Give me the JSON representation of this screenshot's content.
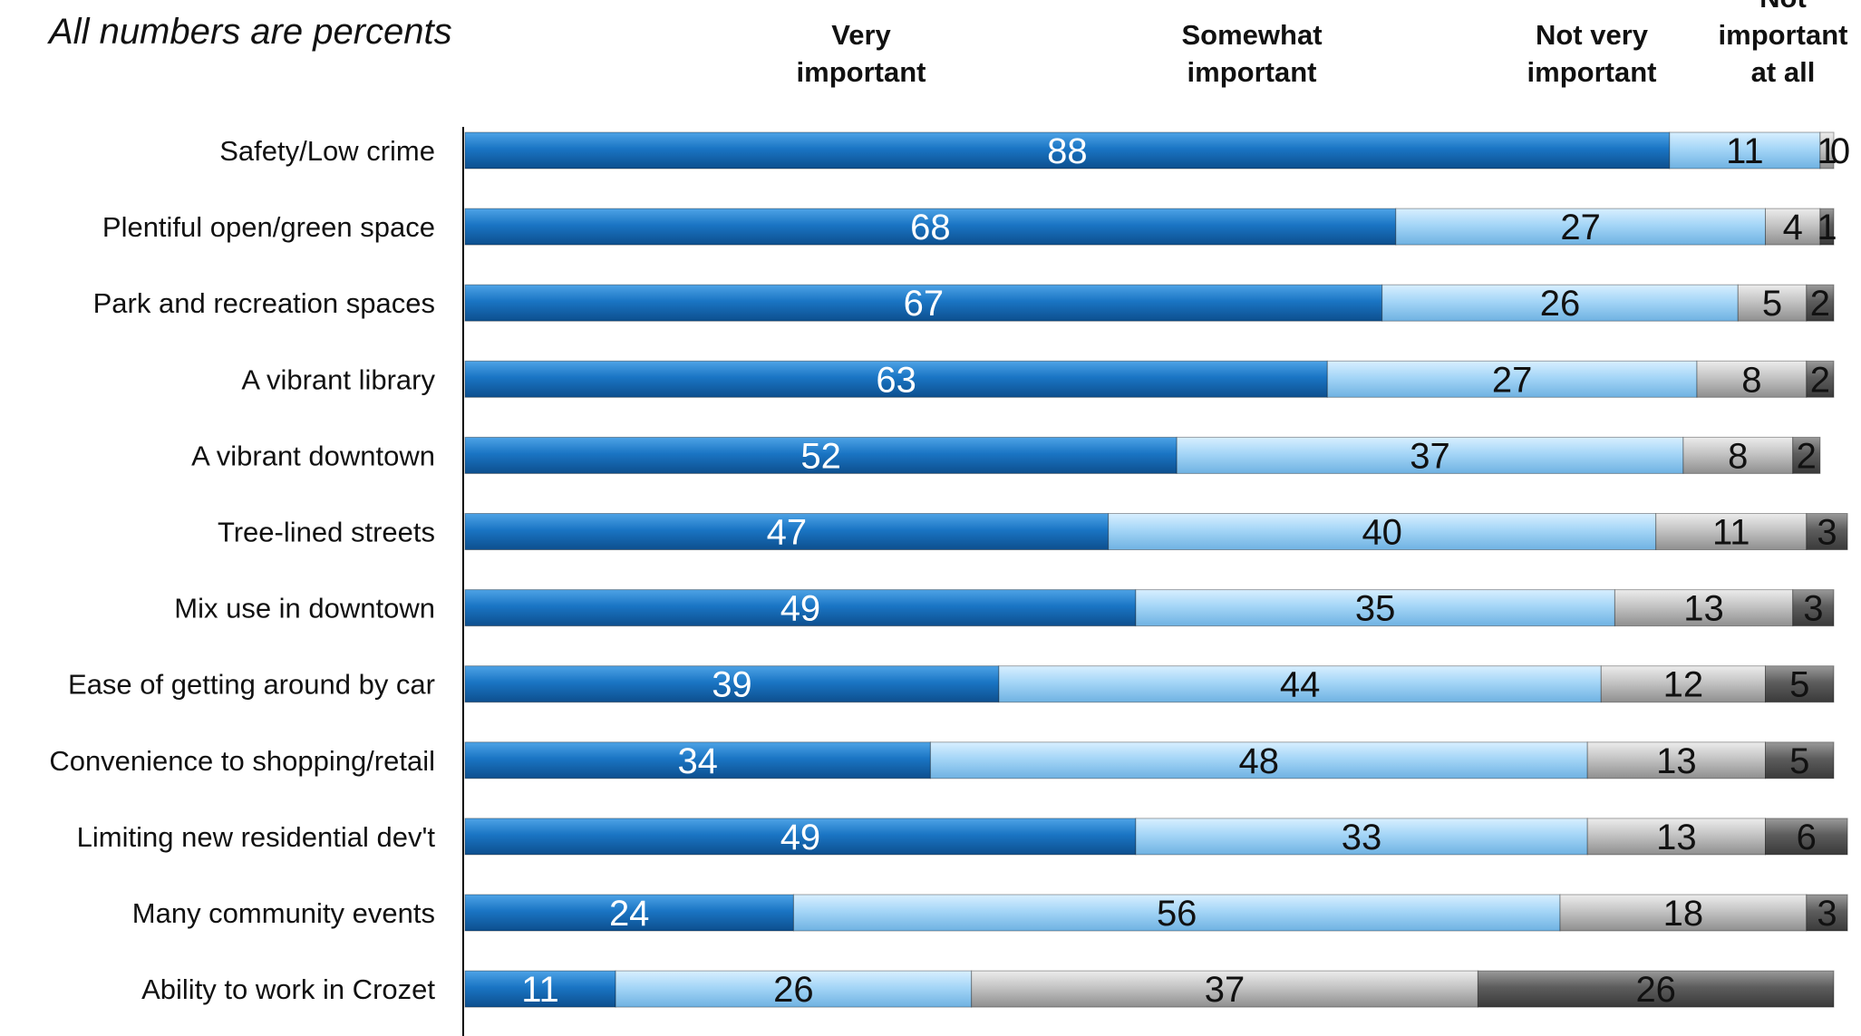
{
  "note": "All numbers are percents",
  "colors": {
    "very": "#1a75c4",
    "somewhat": "#a5d6f7",
    "not_very": "#c4c4c4",
    "not_at_all": "#5d5d5d",
    "axis": "#000000"
  },
  "chart_data": {
    "type": "bar",
    "orientation": "horizontal",
    "stacked": true,
    "categories": [
      "Safety/Low crime",
      "Plentiful open/green space",
      "Park and recreation spaces",
      "A vibrant library",
      "A vibrant downtown",
      "Tree-lined streets",
      "Mix use in downtown",
      "Ease of getting around by car",
      "Convenience to shopping/retail",
      "Limiting new residential dev't",
      "Many community events",
      "Ability to work in Crozet"
    ],
    "series": [
      {
        "name": "Very important",
        "header_lines": [
          "Very",
          "important"
        ],
        "values": [
          88,
          68,
          67,
          63,
          52,
          47,
          49,
          39,
          34,
          49,
          24,
          11
        ],
        "label_color": "#ffffff"
      },
      {
        "name": "Somewhat important",
        "header_lines": [
          "Somewhat",
          "important"
        ],
        "values": [
          11,
          27,
          26,
          27,
          37,
          40,
          35,
          44,
          48,
          33,
          56,
          26
        ],
        "label_color": "#111111"
      },
      {
        "name": "Not very important",
        "header_lines": [
          "Not very",
          "important"
        ],
        "values": [
          1,
          4,
          5,
          8,
          8,
          11,
          13,
          12,
          13,
          13,
          18,
          37
        ],
        "label_color": "#111111"
      },
      {
        "name": "Not important at all",
        "header_lines": [
          "Not",
          "important",
          "at all"
        ],
        "values": [
          0,
          1,
          2,
          2,
          2,
          3,
          3,
          5,
          5,
          6,
          3,
          26
        ],
        "label_color": "#111111"
      }
    ],
    "xlim": [
      0,
      100
    ],
    "grid": false,
    "legend": "column headers across the top",
    "data_labels": true
  }
}
